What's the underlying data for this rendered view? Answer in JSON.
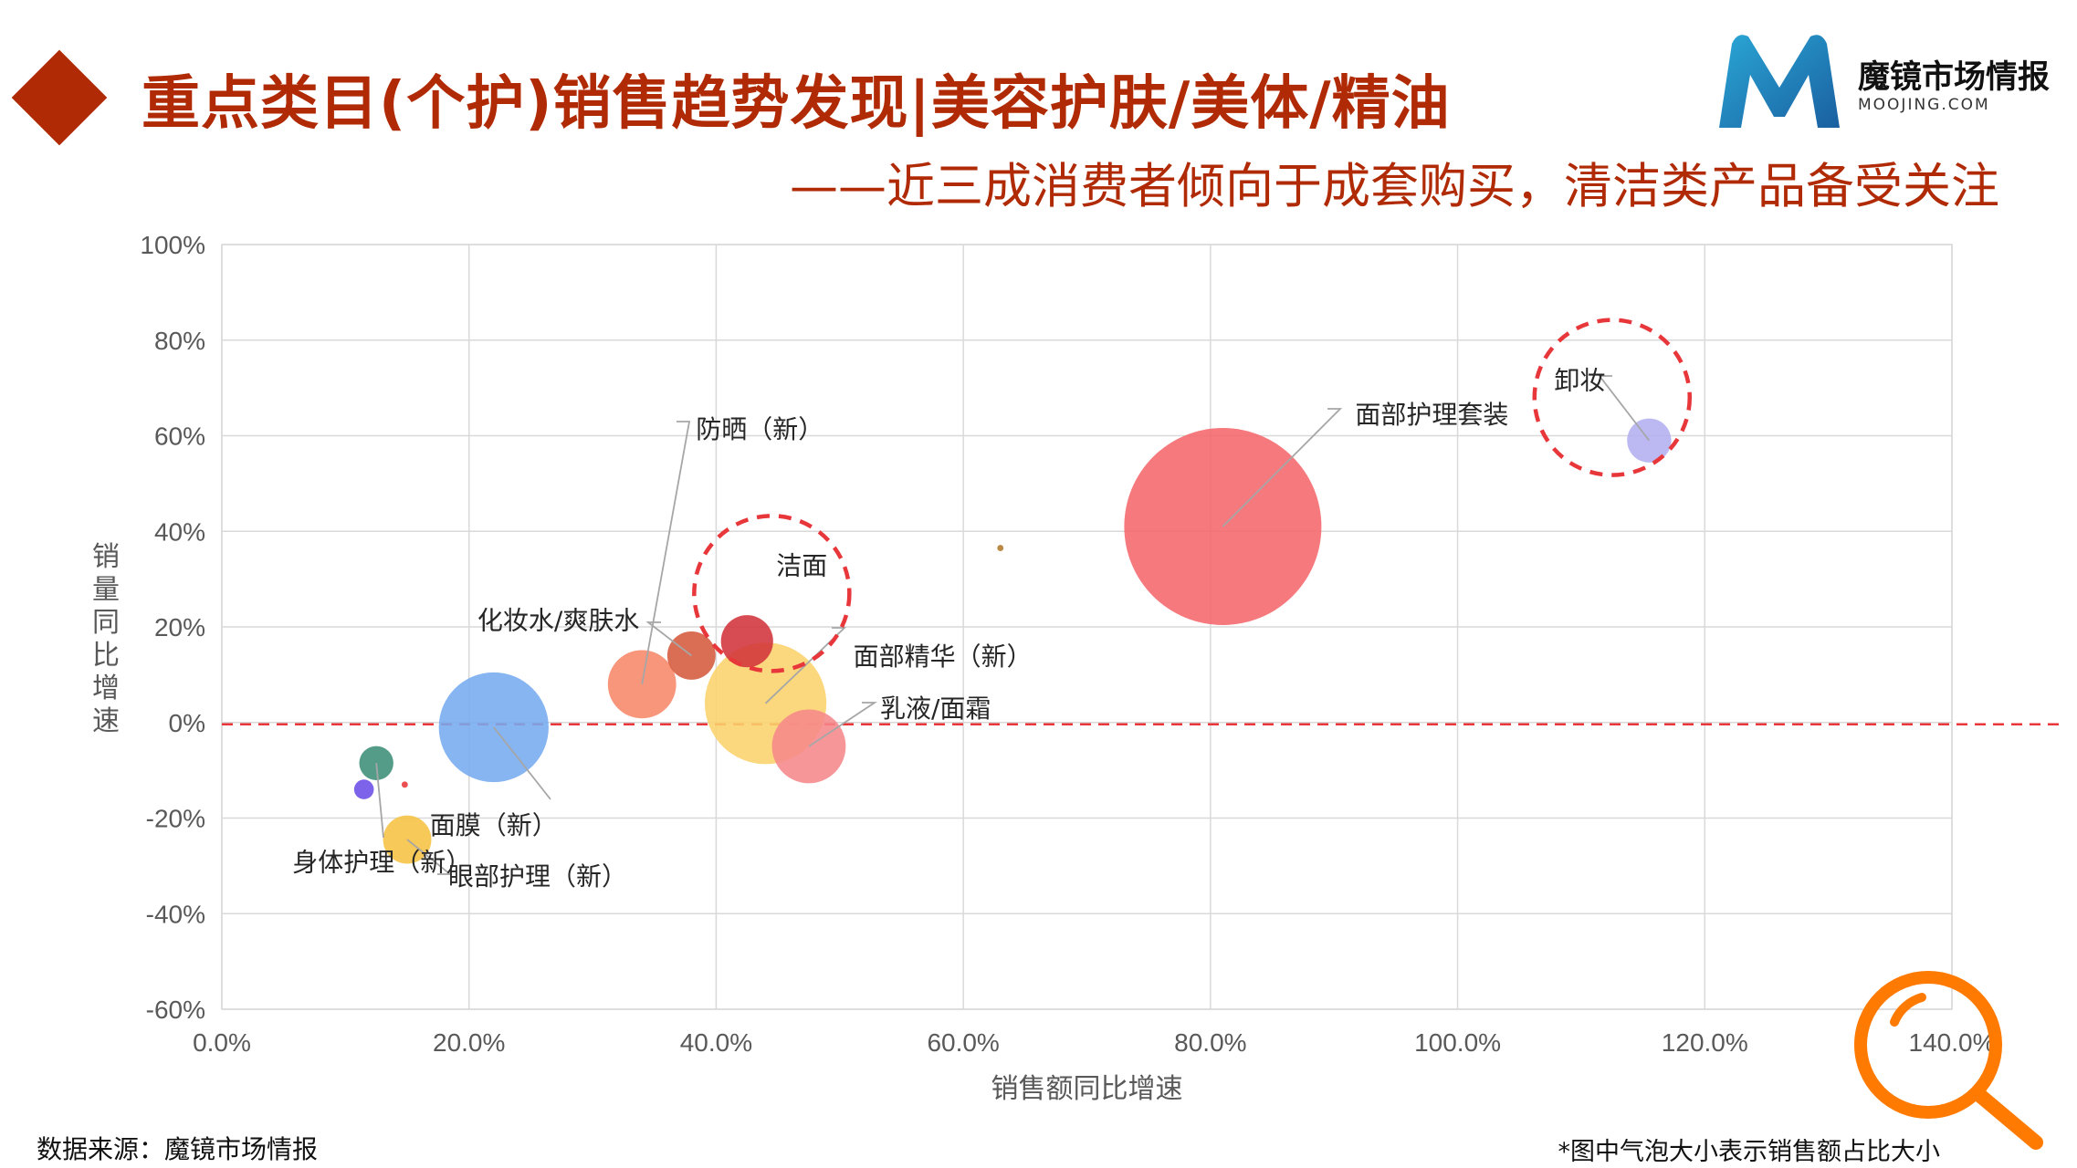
{
  "header": {
    "title": "重点类目(个护)销售趋势发现|美容护肤/美体/精油",
    "subtitle": "——近三成消费者倾向于成套购买，清洁类产品备受关注"
  },
  "logo": {
    "name": "魔镜市场情报",
    "domain": "MOOJING.COM",
    "colors": [
      "#1a6fb0",
      "#2aa7d6"
    ]
  },
  "footer": {
    "source": "数据来源：魔镜市场情报",
    "note": "*图中气泡大小表示销售额占比大小"
  },
  "chart_data": {
    "type": "scatter",
    "variant": "bubble",
    "xlabel": "销售额同比增速",
    "ylabel": "销量同比增速",
    "x_ticks": [
      "0.0%",
      "20.0%",
      "40.0%",
      "60.0%",
      "80.0%",
      "100.0%",
      "120.0%",
      "140.0%"
    ],
    "y_ticks": [
      "100%",
      "80%",
      "60%",
      "40%",
      "20%",
      "0%",
      "-20%",
      "-40%",
      "-60%"
    ],
    "xlim": [
      0,
      140
    ],
    "ylim": [
      -60,
      100
    ],
    "grid": true,
    "reference_line": {
      "y": 0,
      "color": "#e8373a",
      "style": "dashed"
    },
    "highlight_circles": [
      {
        "x": 44.5,
        "y": 27,
        "color": "#e8373a"
      },
      {
        "x": 112.5,
        "y": 68,
        "color": "#e8373a"
      }
    ],
    "points": [
      {
        "label": "面部护理套装",
        "x": 81,
        "y": 41,
        "size": 100,
        "color": "#f4676b"
      },
      {
        "label": "卸妆",
        "x": 115.5,
        "y": 59,
        "size": 5,
        "color": "#b3aff0"
      },
      {
        "label": "洁面",
        "x": 42.5,
        "y": 17,
        "size": 7,
        "color": "#d1333b"
      },
      {
        "label": "面部精华（新）",
        "x": 44,
        "y": 4,
        "size": 38,
        "color": "#fbd36c"
      },
      {
        "label": "乳液/面霜",
        "x": 47.5,
        "y": -5,
        "size": 14,
        "color": "#f6878a"
      },
      {
        "label": "化妆水/爽肤水",
        "x": 38,
        "y": 14,
        "size": 6,
        "color": "#d45a3e"
      },
      {
        "label": "防晒（新）",
        "x": 34,
        "y": 8,
        "size": 12,
        "color": "#f7876a"
      },
      {
        "label": "面膜（新）",
        "x": 22,
        "y": -1,
        "size": 31,
        "color": "#76abef"
      },
      {
        "label": "身体护理（新）",
        "x": 12.5,
        "y": -8.5,
        "size": 3,
        "color": "#3c8e77"
      },
      {
        "label": "眼部护理（新）",
        "x": 15,
        "y": -24.5,
        "size": 6,
        "color": "#f6c142"
      },
      {
        "label": "",
        "x": 11.5,
        "y": -14,
        "size": 1,
        "color": "#6b4de6"
      },
      {
        "label": "",
        "x": 14.8,
        "y": -13,
        "size": 0.1,
        "color": "#e8373a"
      },
      {
        "label": "",
        "x": 63,
        "y": 36.5,
        "size": 0.1,
        "color": "#b07a2a"
      }
    ]
  }
}
